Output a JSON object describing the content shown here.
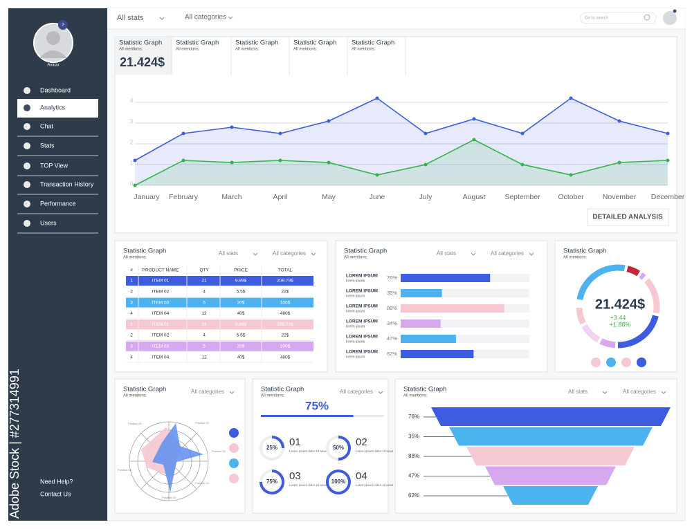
{
  "sidebar": {
    "avatar_label": "Avatar",
    "badge": "2",
    "menu": [
      "Dashboard",
      "Analytics",
      "Chat",
      "Stats",
      "TOP View",
      "Transaction History",
      "Performance",
      "Users"
    ],
    "help": "Need Help?",
    "contact": "Contact Us"
  },
  "watermark": "Adobe Stock | #277314991",
  "topbar": {
    "stats": "All stats",
    "categories": "All categories",
    "search": "Go to search"
  },
  "tabs": [
    {
      "title": "Statistic Graph",
      "subtitle": "All mentions:",
      "value": "21.424$"
    },
    {
      "title": "Statistic Graph",
      "subtitle": "All mentions:"
    },
    {
      "title": "Statistic Graph",
      "subtitle": "All mentions:"
    },
    {
      "title": "Statistic Graph",
      "subtitle": "All mentions:"
    },
    {
      "title": "Statistic Graph",
      "subtitle": "All mentions:"
    }
  ],
  "line_chart": {
    "type": "line",
    "categories": [
      "January",
      "February",
      "March",
      "April",
      "May",
      "June",
      "July",
      "August",
      "September",
      "October",
      "November",
      "December"
    ],
    "series": [
      {
        "color": "#3d5ce0",
        "values": [
          1.2,
          2.5,
          2.8,
          2.5,
          3.1,
          4.2,
          2.5,
          3.2,
          2.5,
          4.2,
          3.1,
          2.5
        ]
      },
      {
        "color": "#35b24a",
        "values": [
          0,
          1.2,
          1.1,
          1.2,
          1.1,
          0.5,
          1.0,
          2.2,
          1.0,
          0.5,
          1.1,
          1.2
        ]
      }
    ],
    "ylim": [
      0,
      4.4
    ],
    "yticks": [
      0,
      1,
      2,
      3,
      4
    ],
    "grid": true
  },
  "button": "DETAILED ANALYSIS",
  "table_panel": {
    "title": "Statistic Graph",
    "subtitle": "All mentions:",
    "stats": "All stats",
    "categories": "All categories",
    "columns": [
      "#",
      "PRODUCT NAME",
      "QTY",
      "PRICE",
      "TOTAL"
    ],
    "rows": [
      [
        "1",
        "ITEM 01",
        "21",
        "9.99$",
        "209.79$"
      ],
      [
        "2",
        "ITEM 02",
        "4",
        "5.5$",
        "22$"
      ],
      [
        "3",
        "ITEM 03",
        "5",
        "20$",
        "100$"
      ],
      [
        "4",
        "ITEM 04",
        "12",
        "40$",
        "480$"
      ],
      [
        "1",
        "ITEM 01",
        "21",
        "9.99$",
        "209.79$"
      ],
      [
        "2",
        "ITEM 02",
        "4",
        "5.5$",
        "22$"
      ],
      [
        "3",
        "ITEM 03",
        "5",
        "20$",
        "100$"
      ],
      [
        "4",
        "ITEM 04",
        "12",
        "40$",
        "480$"
      ]
    ],
    "row_colors": [
      "#3d5ce0",
      "#ffffff",
      "#4db3f0",
      "#ffffff",
      "#f5c8d2",
      "#ffffff",
      "#d6a8f0",
      "#ffffff"
    ]
  },
  "bars_panel": {
    "type": "bar",
    "title": "Statistic Graph",
    "subtitle": "All mentions:",
    "stats": "All stats",
    "categories": "All categories",
    "labels": [
      "LOREM IPSUM",
      "LOREM IPSUM",
      "LOREM IPSUM",
      "LOREM IPSUM",
      "LOREM IPSUM",
      "LOREM IPSUM"
    ],
    "sublabels": [
      "lorem ipsum",
      "lorem ipsum",
      "lorem ipsum",
      "lorem ipsum",
      "lorem ipsum",
      "lorem ipsum"
    ],
    "values": [
      76,
      35,
      88,
      34,
      47,
      62
    ],
    "value_labels": [
      "76%",
      "35%",
      "88%",
      "34%",
      "47%",
      "62%"
    ],
    "colors": [
      "#3d5ce0",
      "#4db3f0",
      "#f5c8d2",
      "#d6a8f0",
      "#4db3f0",
      "#3d5ce0"
    ],
    "xlim": [
      0,
      100
    ]
  },
  "donut_panel": {
    "title": "Statistic Graph",
    "subtitle": "All mentions:",
    "value": "21.424$",
    "change": "+3.44",
    "percent": "+1.88%"
  },
  "radar_panel": {
    "title": "Statistic Graph",
    "subtitle": "All mentions:",
    "categories": "All categories",
    "axis_labels": [
      "Position 01",
      "Position 02",
      "Position 03",
      "Position 04",
      "Position 05",
      "Position 06"
    ]
  },
  "progress_panel": {
    "title": "Statistic Graph",
    "subtitle": "All mentions:",
    "categories": "All categories",
    "value": 75,
    "value_label": "75%",
    "numbers": [
      "01",
      "02",
      "03",
      "04"
    ],
    "texts": [
      "Lorem ipsum dolor sit amet",
      "Lorem ipsum dolor sit amet",
      "Lorem ipsum dolor sit amet",
      "Lorem ipsum dolor sit amet"
    ],
    "values": [
      25,
      50,
      75,
      100
    ],
    "value_labels": [
      "25%",
      "50%",
      "75%",
      "100%"
    ],
    "xlim": [
      0,
      100
    ]
  },
  "funnel_panel": {
    "title": "Statistic Graph",
    "subtitle": "All mentions:",
    "stats": "All stats",
    "categories": "All categories",
    "labels": [
      "76%",
      "35%",
      "88%",
      "47%",
      "62%"
    ]
  }
}
